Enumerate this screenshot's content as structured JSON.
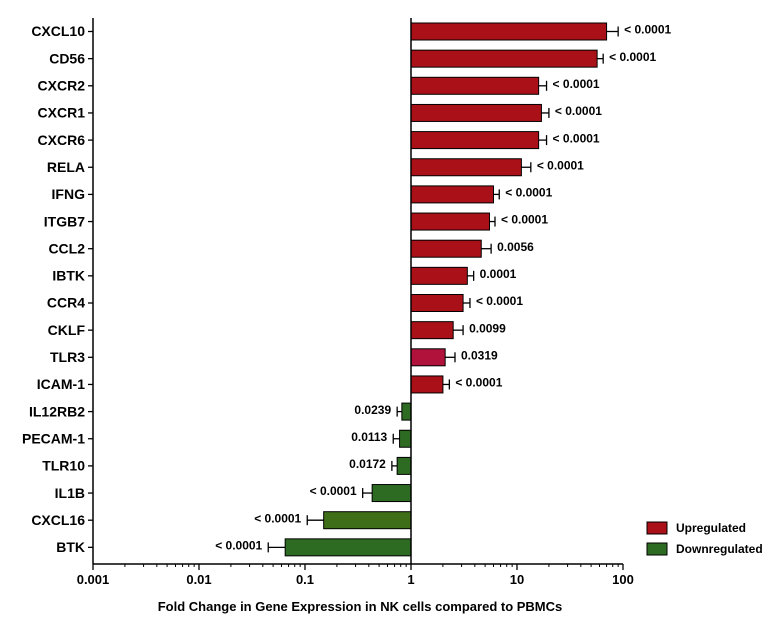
{
  "chart_data": {
    "type": "bar",
    "orientation": "horizontal",
    "xscale": "log",
    "xlim": [
      0.001,
      100
    ],
    "baseline": 1,
    "xlabel": "Fold Change in Gene Expression in NK cells compared to PBMCs",
    "ylabel": "",
    "title": "",
    "grid": false,
    "legend_position": "bottom-right",
    "x_ticks": [
      {
        "value": 0.001,
        "label": "0.001"
      },
      {
        "value": 0.01,
        "label": "0.01"
      },
      {
        "value": 0.1,
        "label": "0.1"
      },
      {
        "value": 1,
        "label": "1"
      },
      {
        "value": 10,
        "label": "10"
      },
      {
        "value": 100,
        "label": "100"
      }
    ],
    "legend": [
      {
        "name": "Upregulated",
        "color": "#aa1018"
      },
      {
        "name": "Downregulated",
        "color": "#2e6b22"
      }
    ],
    "categories": [
      "CXCL10",
      "CD56",
      "CXCR2",
      "CXCR1",
      "CXCR6",
      "RELA",
      "IFNG",
      "ITGB7",
      "CCL2",
      "IBTK",
      "CCR4",
      "CKLF",
      "TLR3",
      "ICAM-1",
      "IL12RB2",
      "PECAM-1",
      "TLR10",
      "IL1B",
      "CXCL16",
      "BTK"
    ],
    "values": [
      70,
      57,
      16,
      17,
      16,
      11,
      6,
      5.5,
      4.6,
      3.4,
      3.1,
      2.5,
      2.1,
      2.0,
      0.82,
      0.78,
      0.74,
      0.43,
      0.15,
      0.065
    ],
    "errors": [
      20,
      8,
      3,
      3,
      3,
      2.5,
      0.8,
      0.7,
      1.1,
      0.5,
      0.5,
      0.6,
      0.5,
      0.3,
      0.08,
      0.1,
      0.08,
      0.08,
      0.045,
      0.02
    ],
    "p_values": [
      "< 0.0001",
      "< 0.0001",
      "< 0.0001",
      "< 0.0001",
      "< 0.0001",
      "< 0.0001",
      "< 0.0001",
      "< 0.0001",
      "0.0056",
      "0.0001",
      "< 0.0001",
      "0.0099",
      "0.0319",
      "< 0.0001",
      "0.0239",
      "0.0113",
      "0.0172",
      "< 0.0001",
      "< 0.0001",
      "< 0.0001"
    ],
    "bar_colors": [
      "#aa1018",
      "#aa1018",
      "#aa1018",
      "#aa1018",
      "#aa1018",
      "#aa1018",
      "#aa1018",
      "#aa1018",
      "#aa1018",
      "#aa1018",
      "#aa1018",
      "#aa1018",
      "#b0123c",
      "#aa1018",
      "#2e6b22",
      "#2e6b22",
      "#2e6b22",
      "#2e6b22",
      "#3f6e18",
      "#2e6b22"
    ]
  }
}
